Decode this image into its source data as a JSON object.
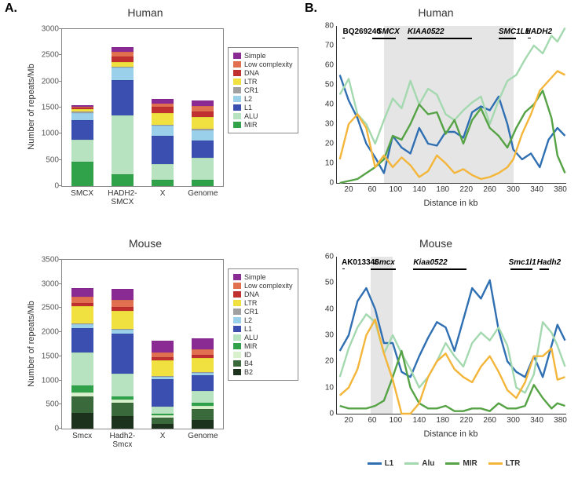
{
  "labels": {
    "panel_a": "A.",
    "panel_b": "B.",
    "human": "Human",
    "mouse": "Mouse",
    "y_axis_stack": "Number of repeats/Mb",
    "x_axis_line": "Distance in kb"
  },
  "colors": {
    "Simple": "#8a2b94",
    "Low complexity": "#e07050",
    "DNA": "#c03030",
    "LTR": "#f0e040",
    "CR1": "#a0a0a0",
    "L2": "#9bd0eb",
    "L1": "#3a4fb0",
    "ALU": "#b8e3c0",
    "MIR": "#2fa24a",
    "ID": "#d8f0cc",
    "B4": "#3a6a3c",
    "B2": "#1d321d",
    "line_L1": "#2f6fb2",
    "line_Alu": "#a4d9b0",
    "line_MIR": "#56a346",
    "line_LTR": "#f3b63a"
  },
  "human_stack": {
    "title": "Human",
    "ymax": 3000,
    "ytick_step": 500,
    "categories": [
      "SMCX",
      "HADH2-\nSMCX",
      "X",
      "Genome"
    ],
    "legend_order": [
      "Simple",
      "Low complexity",
      "DNA",
      "LTR",
      "CR1",
      "L2",
      "L1",
      "ALU",
      "MIR"
    ],
    "stacks": {
      "SMCX": {
        "MIR": 470,
        "ALU": 420,
        "L1": 370,
        "L2": 140,
        "CR1": 20,
        "LTR": 50,
        "DNA": 30,
        "Low complexity": 20,
        "Simple": 30
      },
      "HADH2-\nSMCX": {
        "MIR": 230,
        "ALU": 1120,
        "L1": 680,
        "L2": 230,
        "CR1": 20,
        "LTR": 90,
        "DNA": 100,
        "Low complexity": 90,
        "Simple": 100
      },
      "X": {
        "MIR": 120,
        "ALU": 300,
        "L1": 540,
        "L2": 190,
        "CR1": 20,
        "LTR": 230,
        "DNA": 110,
        "Low complexity": 70,
        "Simple": 80
      },
      "Genome": {
        "MIR": 120,
        "ALU": 420,
        "L1": 330,
        "L2": 200,
        "CR1": 20,
        "LTR": 230,
        "DNA": 110,
        "Low complexity": 100,
        "Simple": 100
      }
    }
  },
  "mouse_stack": {
    "title": "Mouse",
    "ymax": 3500,
    "ytick_step": 500,
    "categories": [
      "Smcx",
      "Hadh2-\nSmcx",
      "X",
      "Genome"
    ],
    "legend_order": [
      "Simple",
      "Low complexity",
      "DNA",
      "LTR",
      "CR1",
      "L2",
      "L1",
      "ALU",
      "MIR",
      "ID",
      "B4",
      "B2"
    ],
    "stacks": {
      "Smcx": {
        "B2": 330,
        "B4": 340,
        "ID": 80,
        "MIR": 140,
        "ALU": 690,
        "L1": 500,
        "L2": 90,
        "CR1": 20,
        "LTR": 350,
        "DNA": 70,
        "Low complexity": 130,
        "Simple": 170
      },
      "Hadh2-\nSmcx": {
        "B2": 260,
        "B4": 280,
        "ID": 70,
        "MIR": 60,
        "ALU": 470,
        "L1": 830,
        "L2": 75,
        "CR1": 15,
        "LTR": 380,
        "DNA": 80,
        "Low complexity": 150,
        "Simple": 230
      },
      "X": {
        "B2": 100,
        "B4": 130,
        "ID": 40,
        "MIR": 40,
        "ALU": 140,
        "L1": 580,
        "L2": 50,
        "CR1": 10,
        "LTR": 320,
        "DNA": 60,
        "Low complexity": 110,
        "Simple": 230
      },
      "Genome": {
        "B2": 180,
        "B4": 230,
        "ID": 60,
        "MIR": 60,
        "ALU": 260,
        "L1": 310,
        "L2": 50,
        "CR1": 10,
        "LTR": 300,
        "DNA": 60,
        "Low complexity": 120,
        "Simple": 220
      }
    }
  },
  "human_line": {
    "title": "Human",
    "ymax": 80,
    "ytick_step": 10,
    "x_ticks": [
      20,
      60,
      100,
      140,
      180,
      220,
      260,
      300,
      340,
      380
    ],
    "xmin": 0,
    "xmax": 390,
    "shaded": [
      {
        "x0": 80,
        "x1": 300
      }
    ],
    "genes": [
      {
        "name": "BQ269240",
        "italic": false,
        "x": 14,
        "label_x": 10,
        "bar": [
          10,
          14
        ],
        "thin": true
      },
      {
        "name": "SMCX",
        "italic": true,
        "x": 80,
        "label_x": 68,
        "bar": [
          60,
          100
        ]
      },
      {
        "name": "KIAA0522",
        "italic": true,
        "x": 170,
        "label_x": 120,
        "bar": [
          120,
          230
        ]
      },
      {
        "name": "SMC1L1",
        "italic": true,
        "x": 300,
        "label_x": 275,
        "bar": [
          275,
          305
        ]
      },
      {
        "name": "HADH2",
        "italic": true,
        "x": 340,
        "label_x": 320,
        "bar": [
          325,
          330
        ],
        "thin": true
      }
    ],
    "series": {
      "L1": [
        [
          5,
          55
        ],
        [
          20,
          42
        ],
        [
          35,
          33
        ],
        [
          50,
          20
        ],
        [
          65,
          13
        ],
        [
          80,
          5
        ],
        [
          95,
          24
        ],
        [
          110,
          18
        ],
        [
          125,
          15
        ],
        [
          140,
          28
        ],
        [
          155,
          20
        ],
        [
          170,
          19
        ],
        [
          185,
          26
        ],
        [
          200,
          26
        ],
        [
          215,
          23
        ],
        [
          230,
          36
        ],
        [
          245,
          39
        ],
        [
          260,
          37
        ],
        [
          275,
          44
        ],
        [
          290,
          30
        ],
        [
          300,
          17
        ],
        [
          315,
          12
        ],
        [
          330,
          15
        ],
        [
          345,
          8
        ],
        [
          360,
          22
        ],
        [
          375,
          28
        ],
        [
          388,
          24
        ]
      ],
      "Alu": [
        [
          5,
          45
        ],
        [
          20,
          53
        ],
        [
          35,
          35
        ],
        [
          50,
          30
        ],
        [
          65,
          20
        ],
        [
          80,
          32
        ],
        [
          95,
          43
        ],
        [
          110,
          38
        ],
        [
          125,
          52
        ],
        [
          140,
          40
        ],
        [
          155,
          48
        ],
        [
          170,
          45
        ],
        [
          185,
          35
        ],
        [
          200,
          32
        ],
        [
          215,
          37
        ],
        [
          230,
          41
        ],
        [
          245,
          44
        ],
        [
          260,
          30
        ],
        [
          275,
          42
        ],
        [
          290,
          52
        ],
        [
          305,
          55
        ],
        [
          320,
          63
        ],
        [
          335,
          70
        ],
        [
          350,
          66
        ],
        [
          365,
          75
        ],
        [
          375,
          72
        ],
        [
          388,
          79
        ]
      ],
      "MIR": [
        [
          5,
          0
        ],
        [
          20,
          1
        ],
        [
          35,
          2
        ],
        [
          50,
          5
        ],
        [
          65,
          8
        ],
        [
          80,
          12
        ],
        [
          95,
          24
        ],
        [
          110,
          22
        ],
        [
          125,
          30
        ],
        [
          140,
          40
        ],
        [
          155,
          35
        ],
        [
          170,
          36
        ],
        [
          185,
          25
        ],
        [
          200,
          32
        ],
        [
          215,
          20
        ],
        [
          230,
          32
        ],
        [
          245,
          38
        ],
        [
          260,
          28
        ],
        [
          275,
          24
        ],
        [
          290,
          18
        ],
        [
          305,
          28
        ],
        [
          320,
          36
        ],
        [
          335,
          40
        ],
        [
          350,
          47
        ],
        [
          365,
          33
        ],
        [
          375,
          14
        ],
        [
          388,
          5
        ]
      ],
      "LTR": [
        [
          5,
          12
        ],
        [
          20,
          30
        ],
        [
          35,
          35
        ],
        [
          50,
          28
        ],
        [
          65,
          8
        ],
        [
          80,
          14
        ],
        [
          95,
          8
        ],
        [
          110,
          13
        ],
        [
          125,
          9
        ],
        [
          140,
          3
        ],
        [
          155,
          6
        ],
        [
          170,
          14
        ],
        [
          185,
          10
        ],
        [
          200,
          5
        ],
        [
          215,
          7
        ],
        [
          230,
          4
        ],
        [
          245,
          2
        ],
        [
          260,
          3
        ],
        [
          275,
          5
        ],
        [
          290,
          8
        ],
        [
          300,
          12
        ],
        [
          315,
          25
        ],
        [
          330,
          35
        ],
        [
          345,
          47
        ],
        [
          360,
          52
        ],
        [
          375,
          57
        ],
        [
          388,
          55
        ]
      ]
    }
  },
  "mouse_line": {
    "title": "Mouse",
    "ymax": 60,
    "ytick_step": 10,
    "x_ticks": [
      20,
      60,
      100,
      140,
      180,
      220,
      260,
      300,
      340,
      380
    ],
    "xmin": 0,
    "xmax": 390,
    "shaded": [
      {
        "x0": 58,
        "x1": 95
      }
    ],
    "genes": [
      {
        "name": "AK013346",
        "italic": false,
        "x": 14,
        "label_x": 8,
        "bar": [
          10,
          14
        ],
        "thin": true
      },
      {
        "name": "Smcx",
        "italic": true,
        "x": 80,
        "label_x": 63,
        "bar": [
          58,
          100
        ]
      },
      {
        "name": "Kiaa0522",
        "italic": true,
        "x": 170,
        "label_x": 130,
        "bar": [
          130,
          220
        ]
      },
      {
        "name": "Smc1l1",
        "italic": true,
        "x": 310,
        "label_x": 292,
        "bar": [
          295,
          333
        ]
      },
      {
        "name": "Hadh2",
        "italic": true,
        "x": 357,
        "label_x": 340,
        "bar": [
          345,
          360
        ]
      }
    ],
    "series": {
      "L1": [
        [
          5,
          24
        ],
        [
          20,
          30
        ],
        [
          35,
          43
        ],
        [
          50,
          48
        ],
        [
          65,
          40
        ],
        [
          80,
          27
        ],
        [
          95,
          27
        ],
        [
          110,
          16
        ],
        [
          125,
          14
        ],
        [
          140,
          22
        ],
        [
          155,
          29
        ],
        [
          170,
          35
        ],
        [
          185,
          33
        ],
        [
          200,
          24
        ],
        [
          215,
          36
        ],
        [
          230,
          48
        ],
        [
          245,
          44
        ],
        [
          260,
          51
        ],
        [
          275,
          32
        ],
        [
          290,
          20
        ],
        [
          305,
          16
        ],
        [
          320,
          14
        ],
        [
          335,
          22
        ],
        [
          350,
          14
        ],
        [
          365,
          26
        ],
        [
          375,
          34
        ],
        [
          388,
          28
        ]
      ],
      "Alu": [
        [
          5,
          14
        ],
        [
          20,
          25
        ],
        [
          35,
          33
        ],
        [
          50,
          38
        ],
        [
          65,
          35
        ],
        [
          80,
          23
        ],
        [
          95,
          30
        ],
        [
          110,
          23
        ],
        [
          125,
          17
        ],
        [
          140,
          10
        ],
        [
          155,
          14
        ],
        [
          170,
          20
        ],
        [
          185,
          27
        ],
        [
          200,
          22
        ],
        [
          215,
          18
        ],
        [
          230,
          27
        ],
        [
          245,
          31
        ],
        [
          260,
          28
        ],
        [
          275,
          33
        ],
        [
          290,
          26
        ],
        [
          305,
          10
        ],
        [
          320,
          8
        ],
        [
          335,
          15
        ],
        [
          350,
          35
        ],
        [
          365,
          31
        ],
        [
          375,
          26
        ],
        [
          388,
          18
        ]
      ],
      "MIR": [
        [
          5,
          3
        ],
        [
          20,
          2
        ],
        [
          35,
          2
        ],
        [
          50,
          2
        ],
        [
          65,
          3
        ],
        [
          80,
          5
        ],
        [
          95,
          14
        ],
        [
          110,
          24
        ],
        [
          125,
          10
        ],
        [
          140,
          4
        ],
        [
          155,
          2
        ],
        [
          170,
          2
        ],
        [
          185,
          3
        ],
        [
          200,
          1
        ],
        [
          215,
          1
        ],
        [
          230,
          2
        ],
        [
          245,
          2
        ],
        [
          260,
          1
        ],
        [
          275,
          4
        ],
        [
          290,
          2
        ],
        [
          305,
          2
        ],
        [
          320,
          3
        ],
        [
          335,
          11
        ],
        [
          350,
          6
        ],
        [
          365,
          2
        ],
        [
          375,
          4
        ],
        [
          388,
          3
        ]
      ],
      "LTR": [
        [
          5,
          7
        ],
        [
          20,
          10
        ],
        [
          35,
          17
        ],
        [
          50,
          30
        ],
        [
          65,
          36
        ],
        [
          80,
          23
        ],
        [
          95,
          13
        ],
        [
          110,
          0
        ],
        [
          125,
          0
        ],
        [
          140,
          4
        ],
        [
          155,
          14
        ],
        [
          170,
          20
        ],
        [
          185,
          23
        ],
        [
          200,
          17
        ],
        [
          215,
          14
        ],
        [
          230,
          12
        ],
        [
          245,
          18
        ],
        [
          260,
          22
        ],
        [
          275,
          16
        ],
        [
          290,
          9
        ],
        [
          305,
          6
        ],
        [
          320,
          12
        ],
        [
          335,
          22
        ],
        [
          350,
          22
        ],
        [
          365,
          25
        ],
        [
          375,
          13
        ],
        [
          388,
          14
        ]
      ]
    }
  },
  "line_legend": [
    "L1",
    "Alu",
    "MIR",
    "LTR"
  ]
}
